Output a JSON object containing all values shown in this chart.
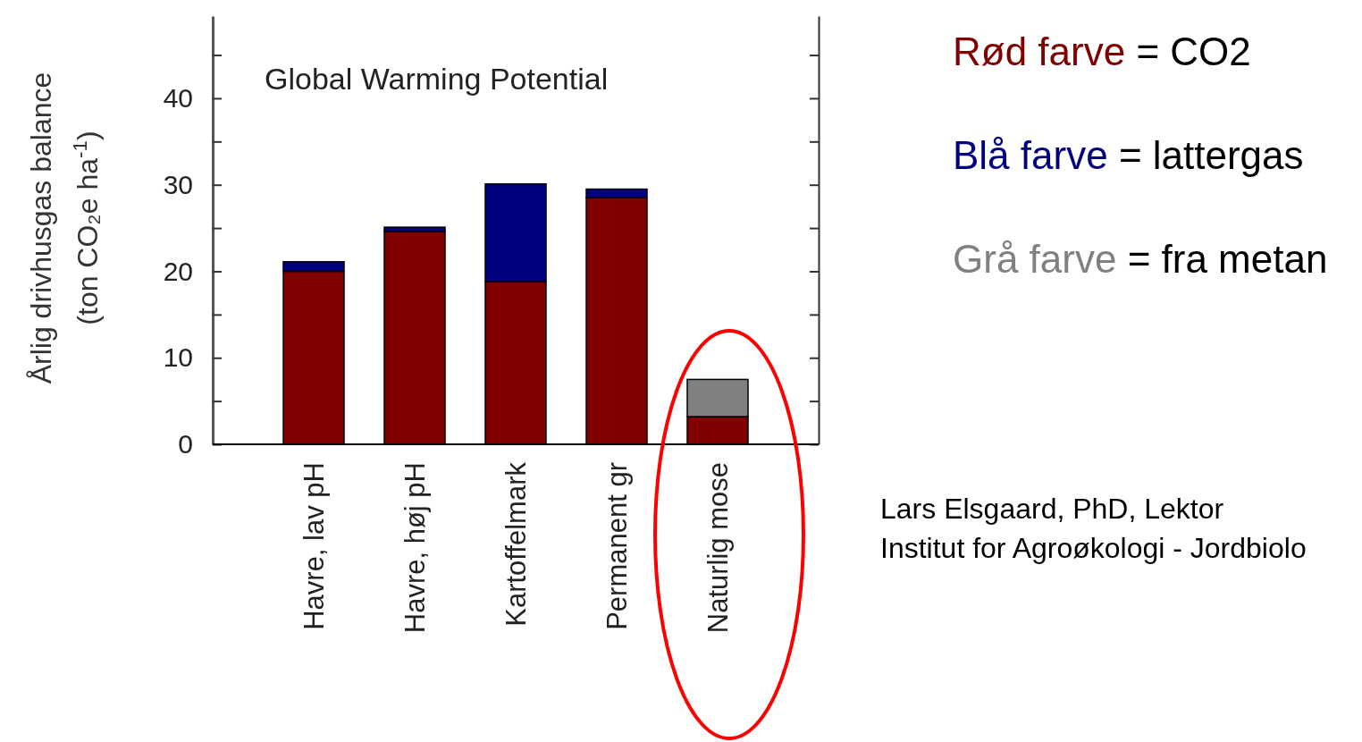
{
  "chart_data": {
    "type": "bar",
    "stacked": true,
    "title": "Global Warming Potential",
    "ylabel": "Årlig drivhusgas balance\n(ton CO₂e ha$^{-1}$)",
    "categories": [
      "Havre, lav pH",
      "Havre, høj pH",
      "Kartoffelmark",
      "Permanent gr",
      "Naturlig mose"
    ],
    "series": [
      {
        "name": "Rød farve = CO2",
        "color": "#800000",
        "values": [
          20,
          24.6,
          18.8,
          28.5,
          3.2
        ]
      },
      {
        "name": "Blå farve = lattergas",
        "color": "#000080",
        "values": [
          1.1,
          0.5,
          11.3,
          1.0,
          null
        ]
      },
      {
        "name": "Grå farve = fra metan",
        "color": "#808080",
        "values": [
          null,
          null,
          null,
          null,
          4.3
        ]
      }
    ],
    "ylim": [
      0,
      49.5
    ],
    "yticks": [
      0,
      {
        "value": 5,
        "label": null
      },
      10,
      {
        "value": 15,
        "label": null
      },
      20,
      {
        "value": 25,
        "label": null
      },
      30,
      {
        "value": 35,
        "label": null
      },
      40,
      {
        "value": 45,
        "label": null
      }
    ],
    "legend": "right",
    "grid": false,
    "annotations": [
      "Lars Elsgaard, PhD, Lektor",
      "Institut for Agroøkologi - Jordbiolo"
    ]
  }
}
